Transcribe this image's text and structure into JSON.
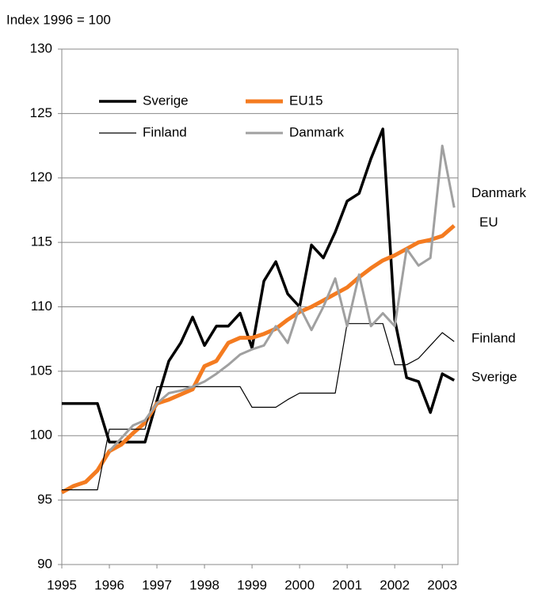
{
  "chart_data": {
    "type": "line",
    "y_axis_label": "Index 1996 = 100",
    "x": [
      1995,
      1995.25,
      1995.5,
      1995.75,
      1996,
      1996.25,
      1996.5,
      1996.75,
      1997,
      1997.25,
      1997.5,
      1997.75,
      1998,
      1998.25,
      1998.5,
      1998.75,
      1999,
      1999.25,
      1999.5,
      1999.75,
      2000,
      2000.25,
      2000.5,
      2000.75,
      2001,
      2001.25,
      2001.5,
      2001.75,
      2002,
      2002.25,
      2002.5,
      2002.75,
      2003,
      2003.25
    ],
    "series": [
      {
        "name": "Sverige",
        "color": "#000000",
        "width": 3.5,
        "end_label": "Sverige",
        "values": [
          102.5,
          102.5,
          102.5,
          102.5,
          99.5,
          99.5,
          99.5,
          99.5,
          102.7,
          105.8,
          107.2,
          109.2,
          107.0,
          108.5,
          108.5,
          109.5,
          106.8,
          112.0,
          113.5,
          111.0,
          110.0,
          114.8,
          113.8,
          115.8,
          118.2,
          118.8,
          121.5,
          123.8,
          109.0,
          104.5,
          104.2,
          101.8,
          104.8,
          104.3
        ]
      },
      {
        "name": "EU15",
        "color": "#f47b20",
        "width": 5,
        "end_label": "EU",
        "values": [
          95.6,
          96.1,
          96.4,
          97.3,
          98.8,
          99.3,
          100.2,
          101.0,
          102.5,
          102.8,
          103.2,
          103.6,
          105.4,
          105.8,
          107.2,
          107.6,
          107.6,
          107.9,
          108.3,
          109.0,
          109.6,
          110.0,
          110.5,
          111.0,
          111.5,
          112.3,
          113.0,
          113.6,
          114.0,
          114.5,
          115.0,
          115.2,
          115.5,
          116.3
        ]
      },
      {
        "name": "Finland",
        "color": "#000000",
        "width": 1.2,
        "end_label": "Finland",
        "values": [
          95.8,
          95.8,
          95.8,
          95.8,
          100.5,
          100.5,
          100.5,
          100.5,
          103.8,
          103.8,
          103.8,
          103.8,
          103.8,
          103.8,
          103.8,
          103.8,
          102.2,
          102.2,
          102.2,
          102.8,
          103.3,
          103.3,
          103.3,
          103.3,
          108.7,
          108.7,
          108.7,
          108.7,
          105.5,
          105.5,
          106.0,
          107.0,
          108.0,
          107.3
        ]
      },
      {
        "name": "Danmark",
        "color": "#a0a0a0",
        "width": 3,
        "end_label": "Danmark",
        "values": [
          null,
          null,
          null,
          null,
          98.8,
          99.8,
          100.8,
          101.2,
          102.5,
          103.3,
          103.5,
          103.8,
          104.2,
          104.8,
          105.5,
          106.3,
          106.7,
          107.0,
          108.5,
          107.2,
          110.0,
          108.2,
          110.0,
          112.2,
          108.5,
          112.5,
          108.5,
          109.5,
          108.5,
          114.5,
          113.2,
          113.8,
          122.5,
          117.7
        ]
      }
    ],
    "xlim": [
      1995,
      2003.33
    ],
    "xticks": [
      1995,
      1996,
      1997,
      1998,
      1999,
      2000,
      2001,
      2002,
      2003
    ],
    "ylim": [
      90,
      130
    ],
    "yticks": [
      90,
      95,
      100,
      105,
      110,
      115,
      120,
      125,
      130
    ],
    "grid": true
  }
}
